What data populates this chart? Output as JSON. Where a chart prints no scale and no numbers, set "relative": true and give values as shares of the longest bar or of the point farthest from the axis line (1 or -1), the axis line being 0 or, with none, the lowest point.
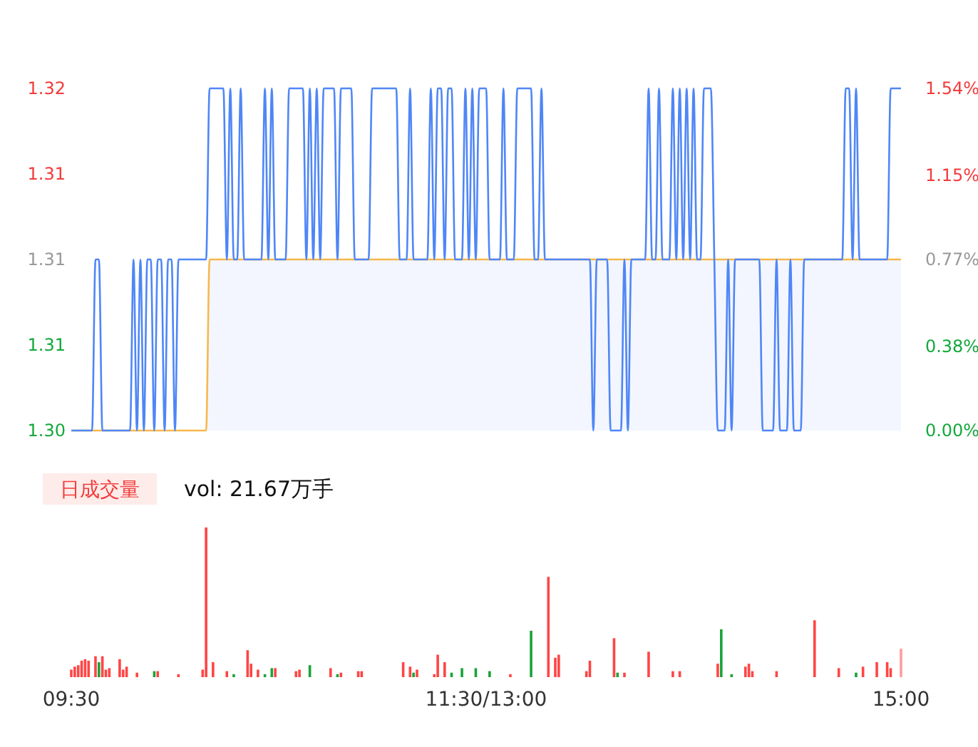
{
  "chart_data": [
    {
      "type": "line",
      "categories": [
        null,
        null,
        null,
        null,
        null,
        null,
        null,
        null,
        null,
        null,
        null,
        null,
        null,
        null,
        null,
        null,
        null,
        null,
        null,
        null,
        null,
        null,
        null,
        null,
        null,
        null,
        null,
        null,
        null,
        null,
        null,
        null,
        null,
        null,
        null,
        null,
        null,
        null,
        null,
        null,
        null,
        null,
        null,
        null,
        null,
        null,
        null,
        null,
        null,
        null,
        null,
        null,
        null,
        null,
        null,
        null,
        null,
        null,
        null,
        null,
        null,
        null,
        null,
        null,
        null,
        null,
        null,
        null,
        null,
        null,
        null,
        null,
        null,
        null,
        null,
        null,
        null,
        null,
        null,
        null,
        null,
        null,
        null,
        null,
        null,
        null,
        null,
        null,
        null,
        null,
        null,
        null,
        null,
        null,
        null,
        null,
        null,
        null,
        null,
        null,
        null,
        null,
        null,
        null,
        null,
        null,
        null,
        null,
        null,
        null,
        null,
        null,
        null,
        null,
        null,
        null,
        null,
        null,
        null,
        null,
        null,
        null,
        null,
        null,
        null,
        null,
        null,
        null,
        null,
        null,
        null,
        null,
        null,
        null,
        null,
        null,
        null,
        null,
        null,
        null,
        null,
        null,
        null,
        null,
        null,
        null,
        null,
        null,
        null,
        null,
        null,
        null,
        null,
        null,
        null,
        null,
        null,
        null,
        null,
        null,
        null,
        null,
        null,
        null,
        null,
        null,
        null,
        null,
        null,
        null,
        null,
        null,
        null,
        null,
        null,
        null,
        null,
        null,
        null,
        null,
        null,
        null,
        null,
        null,
        null,
        null,
        null,
        null,
        null,
        null,
        null,
        null,
        null,
        null,
        null,
        null,
        null,
        null,
        null,
        null,
        null,
        null,
        null,
        null,
        null,
        null,
        null,
        null,
        null,
        null,
        null,
        null,
        null,
        null,
        null,
        null,
        null,
        null,
        null,
        null,
        null,
        null,
        null,
        null,
        null,
        null,
        null,
        null,
        null,
        null,
        null,
        null,
        null,
        null,
        null,
        null,
        null,
        null,
        null,
        null,
        null
      ],
      "ylim": [
        1.3,
        1.32
      ],
      "yticks": [
        {
          "value": 1.3,
          "label": "1.30"
        },
        {
          "value": 1.305,
          "label": "1.31"
        },
        {
          "value": 1.31,
          "label": "1.31"
        },
        {
          "value": 1.315,
          "label": "1.31"
        },
        {
          "value": 1.32,
          "label": "1.32"
        }
      ],
      "y2lim": [
        0,
        1.54
      ],
      "y2ticks": [
        {
          "value": 0,
          "label": "0.00%"
        },
        {
          "value": 0.38,
          "label": "0.38%"
        },
        {
          "value": 0.77,
          "label": "0.77%"
        },
        {
          "value": 1.15,
          "label": "1.15%"
        },
        {
          "value": 1.54,
          "label": "1.54%"
        }
      ],
      "tick_labels": "y",
      "series": [
        {
          "type": "area",
          "color": "#f7b84b",
          "values": [
            1.3,
            1.3,
            1.3,
            1.3,
            1.3,
            1.3,
            1.3,
            1.3,
            1.3,
            1.3,
            1.3,
            1.3,
            1.3,
            1.3,
            1.3,
            1.3,
            1.3,
            1.3,
            1.3,
            1.3,
            1.3,
            1.3,
            1.3,
            1.3,
            1.3,
            1.3,
            1.3,
            1.3,
            1.3,
            1.3,
            1.3,
            1.3,
            1.3,
            1.3,
            1.3,
            1.3,
            1.3,
            1.3,
            1.3,
            1.3,
            1.31,
            1.31,
            1.31,
            1.31,
            1.31,
            1.31,
            1.31,
            1.31,
            1.31,
            1.31,
            1.31,
            1.31,
            1.31,
            1.31,
            1.31,
            1.31,
            1.31,
            1.31,
            1.31,
            1.31,
            1.31,
            1.31,
            1.31,
            1.31,
            1.31,
            1.31,
            1.31,
            1.31,
            1.31,
            1.31,
            1.31,
            1.31,
            1.31,
            1.31,
            1.31,
            1.31,
            1.31,
            1.31,
            1.31,
            1.31,
            1.31,
            1.31,
            1.31,
            1.31,
            1.31,
            1.31,
            1.31,
            1.31,
            1.31,
            1.31,
            1.31,
            1.31,
            1.31,
            1.31,
            1.31,
            1.31,
            1.31,
            1.31,
            1.31,
            1.31,
            1.31,
            1.31,
            1.31,
            1.31,
            1.31,
            1.31,
            1.31,
            1.31,
            1.31,
            1.31,
            1.31,
            1.31,
            1.31,
            1.31,
            1.31,
            1.31,
            1.31,
            1.31,
            1.31,
            1.31,
            1.31,
            1.31,
            1.31,
            1.31,
            1.31,
            1.31,
            1.31,
            1.31,
            1.31,
            1.31,
            1.31,
            1.31,
            1.31,
            1.31,
            1.31,
            1.31,
            1.31,
            1.31,
            1.31,
            1.31,
            1.31,
            1.31,
            1.31,
            1.31,
            1.31,
            1.31,
            1.31,
            1.31,
            1.31,
            1.31,
            1.31,
            1.31,
            1.31,
            1.31,
            1.31,
            1.31,
            1.31,
            1.31,
            1.31,
            1.31,
            1.31,
            1.31,
            1.31,
            1.31,
            1.31,
            1.31,
            1.31,
            1.31,
            1.31,
            1.31,
            1.31,
            1.31,
            1.31,
            1.31,
            1.31,
            1.31,
            1.31,
            1.31,
            1.31,
            1.31,
            1.31,
            1.31,
            1.31,
            1.31,
            1.31,
            1.31,
            1.31,
            1.31,
            1.31,
            1.31,
            1.31,
            1.31,
            1.31,
            1.31,
            1.31,
            1.31,
            1.31,
            1.31,
            1.31,
            1.31,
            1.31,
            1.31,
            1.31,
            1.31,
            1.31,
            1.31,
            1.31,
            1.31,
            1.31,
            1.31,
            1.31,
            1.31,
            1.31,
            1.31,
            1.31,
            1.31,
            1.31,
            1.31,
            1.31,
            1.31,
            1.31,
            1.31,
            1.31,
            1.31,
            1.31,
            1.31,
            1.31,
            1.31,
            1.31,
            1.31,
            1.31,
            1.31,
            1.31,
            1.31,
            1.31,
            1.31,
            1.31,
            1.31,
            1.31,
            1.31,
            1.31
          ]
        },
        {
          "type": "line",
          "color": "#4f86f7",
          "values": [
            1.3,
            1.3,
            1.3,
            1.3,
            1.3,
            1.3,
            1.3,
            1.31,
            1.31,
            1.3,
            1.3,
            1.3,
            1.3,
            1.3,
            1.3,
            1.3,
            1.3,
            1.3,
            1.31,
            1.3,
            1.31,
            1.3,
            1.31,
            1.31,
            1.3,
            1.31,
            1.31,
            1.3,
            1.31,
            1.31,
            1.3,
            1.31,
            1.31,
            1.31,
            1.31,
            1.31,
            1.31,
            1.31,
            1.31,
            1.31,
            1.32,
            1.32,
            1.32,
            1.32,
            1.32,
            1.31,
            1.32,
            1.31,
            1.31,
            1.32,
            1.31,
            1.31,
            1.31,
            1.31,
            1.31,
            1.31,
            1.32,
            1.31,
            1.32,
            1.31,
            1.31,
            1.31,
            1.31,
            1.32,
            1.32,
            1.32,
            1.32,
            1.32,
            1.31,
            1.32,
            1.31,
            1.32,
            1.31,
            1.32,
            1.32,
            1.32,
            1.32,
            1.31,
            1.32,
            1.32,
            1.32,
            1.32,
            1.31,
            1.31,
            1.31,
            1.31,
            1.31,
            1.32,
            1.32,
            1.32,
            1.32,
            1.32,
            1.32,
            1.32,
            1.32,
            1.31,
            1.31,
            1.31,
            1.32,
            1.31,
            1.31,
            1.31,
            1.31,
            1.31,
            1.32,
            1.31,
            1.32,
            1.32,
            1.31,
            1.32,
            1.32,
            1.31,
            1.31,
            1.31,
            1.32,
            1.31,
            1.32,
            1.31,
            1.32,
            1.32,
            1.32,
            1.31,
            1.31,
            1.31,
            1.31,
            1.32,
            1.31,
            1.31,
            1.31,
            1.32,
            1.32,
            1.32,
            1.32,
            1.32,
            1.31,
            1.31,
            1.32,
            1.31,
            1.31,
            1.31,
            1.31,
            1.31,
            1.31,
            1.31,
            1.31,
            1.31,
            1.31,
            1.31,
            1.31,
            1.31,
            1.31,
            1.3,
            1.31,
            1.31,
            1.31,
            1.31,
            1.3,
            1.3,
            1.3,
            1.3,
            1.31,
            1.3,
            1.31,
            1.31,
            1.31,
            1.31,
            1.31,
            1.32,
            1.31,
            1.31,
            1.32,
            1.31,
            1.31,
            1.31,
            1.32,
            1.31,
            1.32,
            1.31,
            1.32,
            1.31,
            1.32,
            1.31,
            1.31,
            1.32,
            1.32,
            1.32,
            1.31,
            1.3,
            1.3,
            1.3,
            1.31,
            1.3,
            1.31,
            1.31,
            1.31,
            1.31,
            1.31,
            1.31,
            1.31,
            1.31,
            1.3,
            1.3,
            1.3,
            1.3,
            1.31,
            1.3,
            1.3,
            1.3,
            1.31,
            1.3,
            1.3,
            1.3,
            1.31,
            1.31,
            1.31,
            1.31,
            1.31,
            1.31,
            1.31,
            1.31,
            1.31,
            1.31,
            1.31,
            1.31,
            1.32,
            1.32,
            1.31,
            1.32,
            1.31,
            1.31,
            1.31,
            1.31,
            1.31,
            1.31,
            1.31,
            1.31,
            1.31,
            1.32,
            1.32,
            1.32,
            1.32
          ]
        }
      ]
    },
    {
      "type": "bar",
      "relative": true,
      "categories": [
        "09:30",
        null,
        null,
        null,
        null,
        null,
        null,
        null,
        null,
        null,
        null,
        null,
        null,
        null,
        null,
        null,
        null,
        null,
        null,
        null,
        null,
        null,
        null,
        null,
        null,
        null,
        null,
        null,
        null,
        null,
        null,
        null,
        null,
        null,
        null,
        null,
        null,
        null,
        null,
        null,
        null,
        null,
        null,
        null,
        null,
        null,
        null,
        null,
        null,
        null,
        null,
        null,
        null,
        null,
        null,
        null,
        null,
        null,
        null,
        null,
        null,
        null,
        null,
        null,
        null,
        null,
        null,
        null,
        null,
        null,
        null,
        null,
        null,
        null,
        null,
        null,
        null,
        null,
        null,
        null,
        null,
        null,
        null,
        null,
        null,
        null,
        null,
        null,
        null,
        null,
        null,
        null,
        null,
        null,
        null,
        null,
        null,
        null,
        null,
        null,
        null,
        null,
        null,
        null,
        null,
        null,
        null,
        null,
        null,
        null,
        null,
        null,
        null,
        null,
        null,
        null,
        null,
        null,
        null,
        null,
        "11:30/13:00",
        null,
        null,
        null,
        null,
        null,
        null,
        null,
        null,
        null,
        null,
        null,
        null,
        null,
        null,
        null,
        null,
        null,
        null,
        null,
        null,
        null,
        null,
        null,
        null,
        null,
        null,
        null,
        null,
        null,
        null,
        null,
        null,
        null,
        null,
        null,
        null,
        null,
        null,
        null,
        null,
        null,
        null,
        null,
        null,
        null,
        null,
        null,
        null,
        null,
        null,
        null,
        null,
        null,
        null,
        null,
        null,
        null,
        null,
        null,
        null,
        null,
        null,
        null,
        null,
        null,
        null,
        null,
        null,
        null,
        null,
        null,
        null,
        null,
        null,
        null,
        null,
        null,
        null,
        null,
        null,
        null,
        null,
        null,
        null,
        null,
        null,
        null,
        null,
        null,
        null,
        null,
        null,
        null,
        null,
        null,
        null,
        null,
        null,
        null,
        null,
        null,
        null,
        null,
        null,
        null,
        null,
        null,
        null,
        null,
        null,
        null,
        null,
        null,
        null,
        null,
        null,
        null,
        null,
        null,
        "15:00"
      ],
      "tick_labels": "x",
      "annotations": [
        "日成交量",
        "vol: 21.67万手"
      ],
      "values": [
        0.05,
        0.07,
        0.08,
        0.11,
        0.12,
        0.11,
        null,
        0.14,
        0.1,
        0.14,
        0.05,
        0.06,
        null,
        null,
        0.12,
        0.05,
        0.07,
        null,
        null,
        0.03,
        null,
        null,
        null,
        null,
        0.04,
        0.04,
        null,
        null,
        null,
        null,
        null,
        0.02,
        null,
        null,
        null,
        null,
        null,
        null,
        0.05,
        1,
        null,
        0.1,
        null,
        null,
        null,
        0.04,
        null,
        0.02,
        null,
        null,
        null,
        0.18,
        0.09,
        null,
        0.05,
        null,
        0.02,
        null,
        0.06,
        0.06,
        null,
        null,
        null,
        null,
        null,
        0.04,
        0.05,
        null,
        null,
        0.08,
        null,
        null,
        null,
        null,
        null,
        0.06,
        null,
        0.02,
        0.03,
        null,
        null,
        null,
        null,
        0.04,
        0.04,
        null,
        null,
        null,
        null,
        null,
        null,
        null,
        null,
        null,
        null,
        null,
        0.1,
        null,
        0.07,
        0.03,
        0.05,
        null,
        null,
        null,
        null,
        0.02,
        0.15,
        null,
        0.1,
        null,
        0.03,
        null,
        null,
        0.06,
        null,
        null,
        null,
        0.06,
        null,
        null,
        null,
        0.04,
        null,
        null,
        null,
        null,
        null,
        0.02,
        null,
        null,
        null,
        null,
        null,
        0.31,
        null,
        null,
        null,
        null,
        0.67,
        null,
        0.13,
        0.15,
        null,
        null,
        null,
        null,
        null,
        null,
        null,
        0.04,
        0.11,
        null,
        null,
        null,
        null,
        null,
        null,
        0.26,
        0.03,
        null,
        0.03,
        null,
        null,
        null,
        null,
        null,
        null,
        0.17,
        null,
        null,
        null,
        null,
        null,
        null,
        0.04,
        null,
        0.04,
        null,
        null,
        null,
        null,
        null,
        null,
        null,
        null,
        null,
        null,
        0.09,
        0.32,
        null,
        null,
        0.02,
        null,
        null,
        null,
        0.07,
        0.09,
        0.04,
        null,
        null,
        null,
        null,
        null,
        null,
        0.04,
        null,
        null,
        null,
        null,
        null,
        null,
        null,
        null,
        null,
        null,
        0.38,
        null,
        null,
        null,
        null,
        null,
        null,
        0.06,
        null,
        null,
        null,
        null,
        0.03,
        null,
        0.07,
        null,
        null,
        null,
        0.1,
        null,
        null,
        0.1,
        0.06,
        null,
        null,
        0.19
      ],
      "colors": [
        "#ff4545",
        "#ff4545",
        "#ff4545",
        "#ff4545",
        "#ff4545",
        "#ff4545",
        null,
        "#ff4545",
        "#1aa33a",
        "#ff4545",
        "#ff4545",
        "#ff4545",
        null,
        null,
        "#ff4545",
        "#ff4545",
        "#ff4545",
        null,
        null,
        "#ff4545",
        null,
        null,
        null,
        null,
        "#1aa33a",
        "#ff4545",
        null,
        null,
        null,
        null,
        null,
        "#ff4545",
        null,
        null,
        null,
        null,
        null,
        null,
        "#ff4545",
        "#ff4545",
        null,
        "#ff4545",
        null,
        null,
        null,
        "#ff4545",
        null,
        "#1aa33a",
        null,
        null,
        null,
        "#ff4545",
        "#ff4545",
        null,
        "#ff4545",
        null,
        "#1aa33a",
        null,
        "#1aa33a",
        "#ff4545",
        null,
        null,
        null,
        null,
        null,
        "#ff4545",
        "#ff4545",
        null,
        null,
        "#1aa33a",
        null,
        null,
        null,
        null,
        null,
        "#ff4545",
        null,
        "#1aa33a",
        "#ff4545",
        null,
        null,
        null,
        null,
        "#ff4545",
        "#ff4545",
        null,
        null,
        null,
        null,
        null,
        null,
        null,
        null,
        null,
        null,
        null,
        "#ff4545",
        null,
        "#ff4545",
        "#1aa33a",
        "#ff4545",
        null,
        null,
        null,
        null,
        "#ff4545",
        "#ff4545",
        null,
        "#ff4545",
        null,
        "#1aa33a",
        null,
        null,
        "#1aa33a",
        null,
        null,
        null,
        "#1aa33a",
        null,
        null,
        null,
        "#1aa33a",
        null,
        null,
        null,
        null,
        null,
        "#ff4545",
        null,
        null,
        null,
        null,
        null,
        "#1aa33a",
        null,
        null,
        null,
        null,
        "#ff4545",
        null,
        "#ff4545",
        "#ff4545",
        null,
        null,
        null,
        null,
        null,
        null,
        null,
        "#ff4545",
        "#ff4545",
        null,
        null,
        null,
        null,
        null,
        null,
        "#ff4545",
        "#1aa33a",
        null,
        "#ff4545",
        null,
        null,
        null,
        null,
        null,
        null,
        "#ff4545",
        null,
        null,
        null,
        null,
        null,
        null,
        "#ff4545",
        null,
        "#ff4545",
        null,
        null,
        null,
        null,
        null,
        null,
        null,
        null,
        null,
        null,
        "#ff4545",
        "#1aa33a",
        null,
        null,
        "#1aa33a",
        null,
        null,
        null,
        "#ff4545",
        "#ff4545",
        "#ff4545",
        null,
        null,
        null,
        null,
        null,
        null,
        "#ff4545",
        null,
        null,
        null,
        null,
        null,
        null,
        null,
        null,
        null,
        null,
        "#ff4545",
        null,
        null,
        null,
        null,
        null,
        null,
        "#ff4545",
        null,
        null,
        null,
        null,
        "#1aa33a",
        null,
        "#ff4545",
        null,
        null,
        null,
        "#ff4545",
        null,
        null,
        "#ff4545",
        "#ff4545",
        null,
        null,
        "#ff9c9c"
      ]
    }
  ]
}
